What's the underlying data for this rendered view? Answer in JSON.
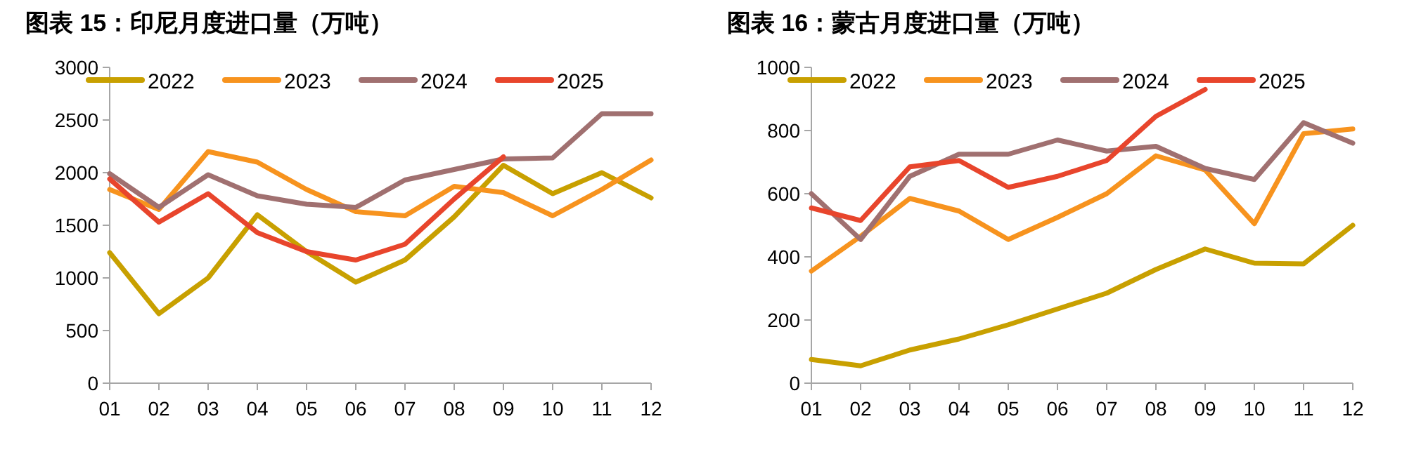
{
  "chart_data": [
    {
      "type": "line",
      "title": "图表 15：印尼月度进口量（万吨）",
      "categories": [
        "01",
        "02",
        "03",
        "04",
        "05",
        "06",
        "07",
        "08",
        "09",
        "10",
        "11",
        "12"
      ],
      "ylim": [
        0,
        3000
      ],
      "yticks": [
        0,
        500,
        1000,
        1500,
        2000,
        2500,
        3000
      ],
      "legend": "top",
      "grid": false,
      "series": [
        {
          "name": "2022",
          "color": "#c8a000",
          "values": [
            1240,
            660,
            1000,
            1600,
            1250,
            960,
            1170,
            1580,
            2070,
            1800,
            2000,
            1760
          ]
        },
        {
          "name": "2023",
          "color": "#f7931e",
          "values": [
            1840,
            1650,
            2200,
            2100,
            1840,
            1630,
            1590,
            1870,
            1810,
            1590,
            1840,
            2120
          ]
        },
        {
          "name": "2024",
          "color": "#a07070",
          "values": [
            1990,
            1670,
            1980,
            1780,
            1700,
            1670,
            1930,
            2030,
            2130,
            2140,
            2560,
            2560
          ]
        },
        {
          "name": "2025",
          "color": "#e8452c",
          "values": [
            1940,
            1530,
            1800,
            1430,
            1250,
            1170,
            1320,
            1750,
            2150,
            null,
            null,
            null
          ]
        }
      ]
    },
    {
      "type": "line",
      "title": "图表 16：蒙古月度进口量（万吨）",
      "categories": [
        "01",
        "02",
        "03",
        "04",
        "05",
        "06",
        "07",
        "08",
        "09",
        "10",
        "11",
        "12"
      ],
      "ylim": [
        0,
        1000
      ],
      "yticks": [
        0,
        200,
        400,
        600,
        800,
        1000
      ],
      "legend": "top",
      "grid": false,
      "series": [
        {
          "name": "2022",
          "color": "#c8a000",
          "values": [
            75,
            55,
            105,
            140,
            185,
            235,
            285,
            360,
            425,
            380,
            378,
            500
          ]
        },
        {
          "name": "2023",
          "color": "#f7931e",
          "values": [
            355,
            465,
            585,
            545,
            455,
            525,
            600,
            720,
            675,
            505,
            790,
            805
          ]
        },
        {
          "name": "2024",
          "color": "#a07070",
          "values": [
            600,
            455,
            655,
            725,
            725,
            770,
            735,
            750,
            680,
            645,
            825,
            760
          ]
        },
        {
          "name": "2025",
          "color": "#e8452c",
          "values": [
            555,
            515,
            685,
            705,
            620,
            655,
            705,
            845,
            930,
            null,
            null,
            null
          ]
        }
      ]
    }
  ]
}
